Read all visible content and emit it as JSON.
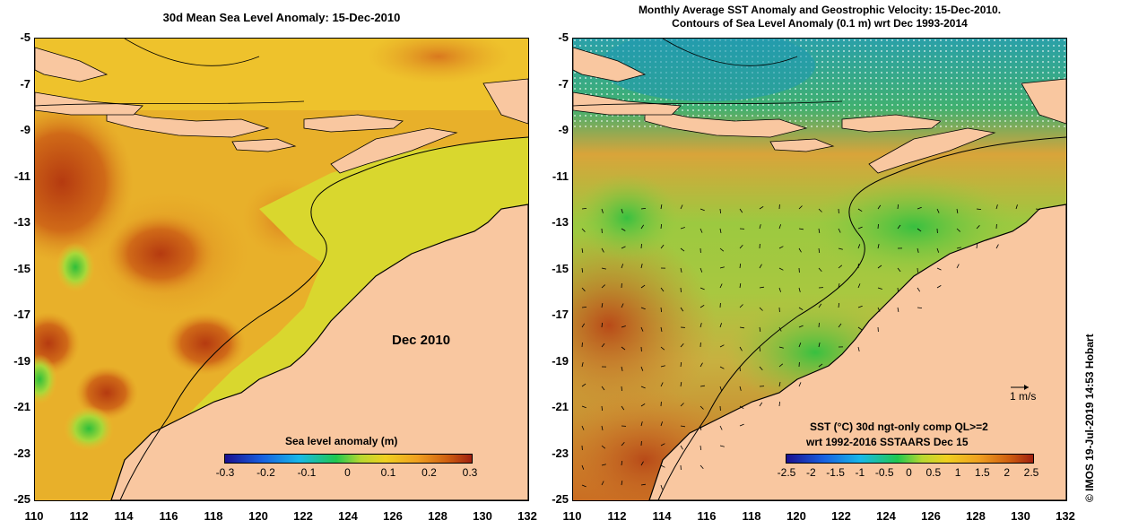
{
  "left_panel": {
    "title": "30d Mean Sea Level Anomaly: 15-Dec-2010",
    "date_label": "Dec 2010",
    "colorbar": {
      "label": "Sea level anomaly (m)",
      "ticks": [
        "-0.3",
        "-0.2",
        "-0.1",
        "0",
        "0.1",
        "0.2",
        "0.3"
      ],
      "range": [
        -0.3,
        0.3
      ]
    }
  },
  "right_panel": {
    "title_line1": "Monthly Average SST Anomaly  and Geostrophic Velocity: 15-Dec-2010.",
    "title_line2": "Contours of Sea Level Anomaly (0.1 m) wrt Dec 1993-2014",
    "velocity_scale": "1 m/s",
    "sst_label_line1": "SST (°C) 30d ngt-only comp QL>=2",
    "sst_label_line2": "wrt 1992-2016 SSTAARS Dec 15",
    "colorbar": {
      "ticks": [
        "-2.5",
        "-2",
        "-1.5",
        "-1",
        "-0.5",
        "0",
        "0.5",
        "1",
        "1.5",
        "2",
        "2.5"
      ],
      "range": [
        -2.5,
        2.5
      ]
    }
  },
  "axes": {
    "y_ticks": [
      "-5",
      "-7",
      "-9",
      "-11",
      "-13",
      "-15",
      "-17",
      "-19",
      "-21",
      "-23",
      "-25"
    ],
    "x_ticks": [
      "110",
      "112",
      "114",
      "116",
      "118",
      "120",
      "122",
      "124",
      "126",
      "128",
      "130",
      "132"
    ],
    "lon_range": [
      110,
      132
    ],
    "lat_range": [
      -25,
      -5
    ]
  },
  "credit": "© IMOS 19-Jul-2019 14:53 Hobart",
  "colors": {
    "land": "#f9c7a0",
    "background": "#ffffff"
  }
}
